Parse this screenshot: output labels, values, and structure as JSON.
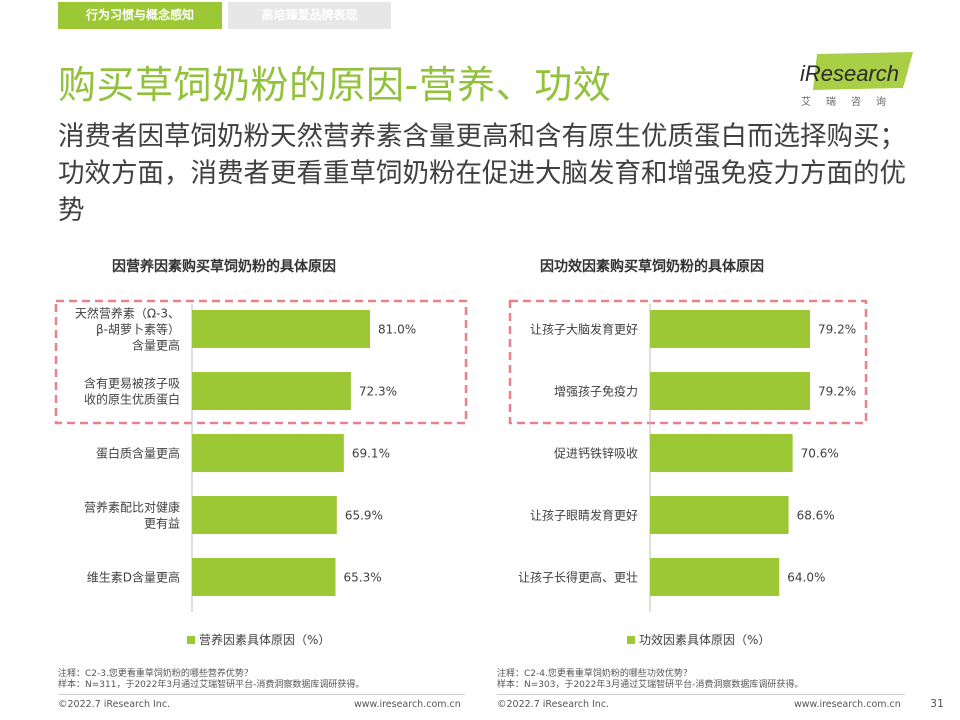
{
  "header": {
    "tabs": [
      {
        "label": "行为习惯与概念感知"
      },
      {
        "label": "高培臻爱品牌表现"
      }
    ],
    "title": "购买草饲奶粉的原因-营养、功效",
    "logo": {
      "brand": "iResearch",
      "cn": "艾瑞咨询"
    }
  },
  "subtitle": "消费者因草饲奶粉天然营养素含量更高和含有原生优质蛋白而选择购买；功效方面，消费者更看重草饲奶粉在促进大脑发育和增强免疫力方面的优势",
  "colors": {
    "accent": "#92c13c",
    "bar": "#9cc836",
    "highlight_box": "#e8828a",
    "text": "#404040"
  },
  "chart_data": [
    {
      "type": "bar",
      "orientation": "horizontal",
      "title": "因营养因素购买草饲奶粉的具体原因",
      "categories": [
        [
          "天然营养素（Ω-3、",
          "β-胡萝卜素等）",
          "含量更高"
        ],
        [
          "含有更易被孩子吸",
          "收的原生优质蛋白"
        ],
        [
          "蛋白质含量更高"
        ],
        [
          "营养素配比对健康",
          "更有益"
        ],
        [
          "维生素D含量更高"
        ]
      ],
      "values": [
        81.0,
        72.3,
        69.1,
        65.9,
        65.3
      ],
      "value_labels": [
        "81.0%",
        "72.3%",
        "69.1%",
        "65.9%",
        "65.3%"
      ],
      "legend": "营养因素具体原因（%）",
      "highlighted": [
        0,
        1
      ]
    },
    {
      "type": "bar",
      "orientation": "horizontal",
      "title": "因功效因素购买草饲奶粉的具体原因",
      "categories": [
        [
          "让孩子大脑发育更好"
        ],
        [
          "增强孩子免疫力"
        ],
        [
          "促进钙铁锌吸收"
        ],
        [
          "让孩子眼睛发育更好"
        ],
        [
          "让孩子长得更高、更壮"
        ]
      ],
      "values": [
        79.2,
        79.2,
        70.6,
        68.6,
        64.0
      ],
      "value_labels": [
        "79.2%",
        "79.2%",
        "70.6%",
        "68.6%",
        "64.0%"
      ],
      "legend": "功效因素具体原因（%）",
      "highlighted": [
        0,
        1
      ]
    }
  ],
  "notes": {
    "left": [
      "注释：C2-3.您更看重草饲奶粉的哪些营养优势？",
      "样本：N=311，于2022年3月通过艾瑞智研平台-消费洞察数据库调研获得。"
    ],
    "right": [
      "注释：C2-4.您更看重草饲奶粉的哪些功效优势？",
      "样本：N=303，于2022年3月通过艾瑞智研平台-消费洞察数据库调研获得。"
    ]
  },
  "footer": {
    "copyright": "©2022.7 iResearch Inc.",
    "url": "www.iresearch.com.cn",
    "page": "31"
  }
}
